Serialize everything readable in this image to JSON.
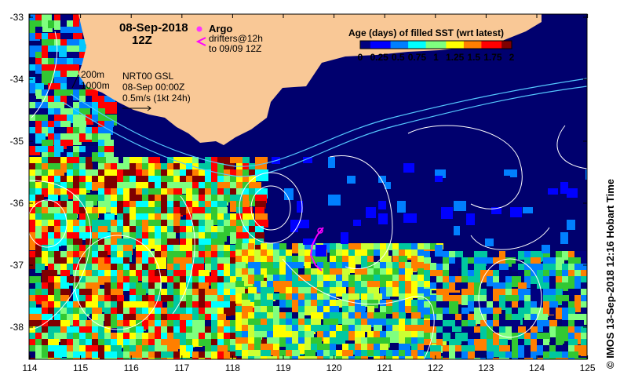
{
  "header": {
    "date": "08-Sep-2018",
    "time": "12Z"
  },
  "legend": {
    "argo_label": "Argo",
    "drifters_label": "drifters@12h",
    "drifters_to": "to 09/09 12Z",
    "argo_color": "#ff33ff",
    "drifter_color": "#ff00ff"
  },
  "contour_info": {
    "iso_200": "200m",
    "iso_1000": "1000m",
    "product": "NRT00 GSL",
    "product_time": "08-Sep 00:00Z",
    "scale": "0.5m/s (1kt 24h)"
  },
  "colorbar": {
    "title": "Age (days) of filled SST (wrt latest)",
    "ticks": [
      "0",
      "0.25",
      "0.5",
      "0.75",
      "1",
      "1.25",
      "1.5",
      "1.75",
      "2"
    ],
    "colors": [
      "#00007f",
      "#0000ff",
      "#007fff",
      "#00ffff",
      "#7fff7f",
      "#ffff00",
      "#ff7f00",
      "#ff0000",
      "#7f0000"
    ]
  },
  "axes": {
    "lat_ticks": [
      "-33",
      "-34",
      "-35",
      "-36",
      "-37",
      "-38"
    ],
    "lon_ticks": [
      "114",
      "115",
      "116",
      "117",
      "118",
      "119",
      "120",
      "121",
      "122",
      "123",
      "124",
      "125"
    ]
  },
  "colors": {
    "land": "#f9c896",
    "ocean_deep": "#00006e",
    "contour": "#ffffff",
    "isobath": "#55c8ff"
  },
  "credit": "© IMOS 13-Sep-2018 12:16 Hobart Time"
}
